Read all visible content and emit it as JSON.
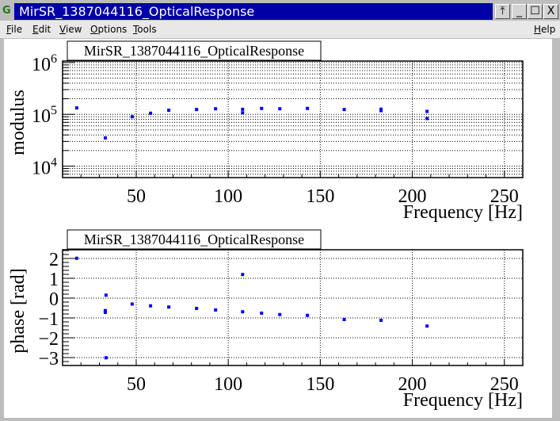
{
  "window": {
    "title": "MirSR_1387044116_OpticalResponse",
    "buttons": {
      "stick": "⤒",
      "minimize": "_",
      "maximize": "☐",
      "close": "X"
    }
  },
  "menu": {
    "file": "File",
    "edit": "Edit",
    "view": "View",
    "options": "Options",
    "tools": "Tools",
    "help": "Help"
  },
  "colors": {
    "titlebar": "#0000a8",
    "marker": "#0000ff"
  },
  "chart_data": [
    {
      "type": "scatter",
      "title": "MirSR_1387044116_OpticalResponse",
      "xlabel": "Frequency [Hz]",
      "ylabel": "modulus",
      "xlim": [
        10,
        260
      ],
      "ylim": [
        6000,
        1070000
      ],
      "yscale": "log",
      "grid": true,
      "x_ticks": [
        "50",
        "100",
        "150",
        "200",
        "250"
      ],
      "y_ticks": [
        {
          "base": "10",
          "exp": "4",
          "value": 10000
        },
        {
          "base": "10",
          "exp": "5",
          "value": 100000
        },
        {
          "base": "10",
          "exp": "6",
          "value": 1000000
        }
      ],
      "points": [
        [
          17.7,
          133000
        ],
        [
          33.2,
          35000
        ],
        [
          47.8,
          90000
        ],
        [
          57.8,
          105000
        ],
        [
          67.7,
          120000
        ],
        [
          82.8,
          124000
        ],
        [
          93.1,
          128000
        ],
        [
          107.8,
          125000
        ],
        [
          107.8,
          107000
        ],
        [
          118.1,
          130000
        ],
        [
          128,
          128000
        ],
        [
          143,
          130000
        ],
        [
          163,
          124000
        ],
        [
          183,
          126000
        ],
        [
          183,
          118000
        ],
        [
          208,
          114000
        ],
        [
          208,
          83000
        ]
      ]
    },
    {
      "type": "scatter",
      "title": "MirSR_1387044116_OpticalResponse",
      "xlabel": "Frequency [Hz]",
      "ylabel": "phase [rad]",
      "xlim": [
        10,
        260
      ],
      "ylim": [
        -3.4,
        2.44
      ],
      "grid": true,
      "x_ticks": [
        "50",
        "100",
        "150",
        "200",
        "250"
      ],
      "y_ticks": [
        "2",
        "1",
        "0",
        "−1",
        "−2",
        "−3"
      ],
      "points": [
        [
          17.7,
          2.01
        ],
        [
          33.2,
          -0.63
        ],
        [
          33.2,
          -0.72
        ],
        [
          33.6,
          0.15
        ],
        [
          33.6,
          -3.01
        ],
        [
          47.8,
          -0.3
        ],
        [
          57.8,
          -0.39
        ],
        [
          67.7,
          -0.45
        ],
        [
          82.8,
          -0.52
        ],
        [
          93.1,
          -0.6
        ],
        [
          107.8,
          1.19
        ],
        [
          107.8,
          -0.69
        ],
        [
          118.1,
          -0.76
        ],
        [
          128,
          -0.83
        ],
        [
          143,
          -0.87
        ],
        [
          163,
          -1.08
        ],
        [
          183,
          -1.12
        ],
        [
          208,
          -1.41
        ]
      ]
    }
  ]
}
